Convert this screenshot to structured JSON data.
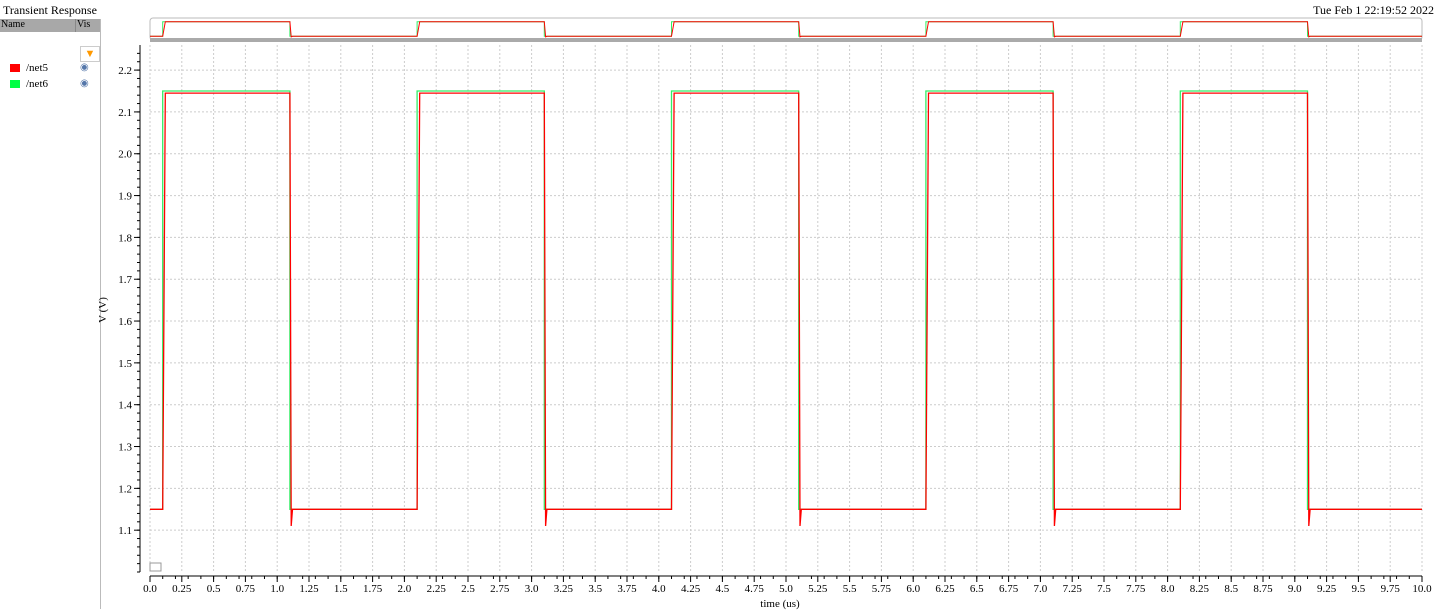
{
  "window": {
    "title": "Transient Response",
    "timestamp": "Tue Feb 1 22:19:52 2022"
  },
  "panel": {
    "col_name": "Name",
    "col_vis": "Vis",
    "filter_icon": "funnel-icon",
    "signals": [
      {
        "label": "/net5",
        "color": "#ff0000",
        "visible_icon": "eye-icon"
      },
      {
        "label": "/net6",
        "color": "#00ff44",
        "visible_icon": "eye-icon"
      }
    ]
  },
  "chart_data": {
    "type": "line",
    "title": "",
    "xlabel": "time (us)",
    "ylabel": "V (V)",
    "xlim": [
      0,
      10
    ],
    "ylim": [
      1.0,
      2.26
    ],
    "grid": true,
    "xticks": [
      "0.0",
      "0.25",
      "0.5",
      "0.75",
      "1.0",
      "1.25",
      "1.5",
      "1.75",
      "2.0",
      "2.25",
      "2.5",
      "2.75",
      "3.0",
      "3.25",
      "3.5",
      "3.75",
      "4.0",
      "4.25",
      "4.5",
      "4.75",
      "5.0",
      "5.25",
      "5.5",
      "5.75",
      "6.0",
      "6.25",
      "6.5",
      "6.75",
      "7.0",
      "7.25",
      "7.5",
      "7.75",
      "8.0",
      "8.25",
      "8.5",
      "8.75",
      "9.0",
      "9.25",
      "9.5",
      "9.75",
      "10.0"
    ],
    "yticks": [
      "1.1",
      "1.2",
      "1.3",
      "1.4",
      "1.5",
      "1.6",
      "1.7",
      "1.8",
      "1.9",
      "2.0",
      "2.1",
      "2.2"
    ],
    "series": [
      {
        "name": "/net5",
        "color": "#ff0000",
        "points": [
          [
            0,
            1.15
          ],
          [
            0.1,
            1.15
          ],
          [
            0.12,
            2.145
          ],
          [
            1.1,
            2.145
          ],
          [
            1.11,
            1.11
          ],
          [
            1.12,
            1.15
          ],
          [
            2.1,
            1.15
          ],
          [
            2.12,
            2.145
          ],
          [
            3.1,
            2.145
          ],
          [
            3.11,
            1.11
          ],
          [
            3.12,
            1.15
          ],
          [
            4.1,
            1.15
          ],
          [
            4.12,
            2.145
          ],
          [
            5.1,
            2.145
          ],
          [
            5.11,
            1.11
          ],
          [
            5.12,
            1.15
          ],
          [
            6.1,
            1.15
          ],
          [
            6.12,
            2.145
          ],
          [
            7.1,
            2.145
          ],
          [
            7.11,
            1.11
          ],
          [
            7.12,
            1.15
          ],
          [
            8.1,
            1.15
          ],
          [
            8.12,
            2.145
          ],
          [
            9.1,
            2.145
          ],
          [
            9.11,
            1.11
          ],
          [
            9.12,
            1.15
          ],
          [
            10,
            1.15
          ]
        ]
      },
      {
        "name": "/net6",
        "color": "#33ee66",
        "points": [
          [
            0,
            1.15
          ],
          [
            0.1,
            1.15
          ],
          [
            0.1,
            2.15
          ],
          [
            1.1,
            2.15
          ],
          [
            1.1,
            1.15
          ],
          [
            2.1,
            1.15
          ],
          [
            2.1,
            2.15
          ],
          [
            3.1,
            2.15
          ],
          [
            3.1,
            1.15
          ],
          [
            4.1,
            1.15
          ],
          [
            4.1,
            2.15
          ],
          [
            5.1,
            2.15
          ],
          [
            5.1,
            1.15
          ],
          [
            6.1,
            1.15
          ],
          [
            6.1,
            2.15
          ],
          [
            7.1,
            2.15
          ],
          [
            7.1,
            1.15
          ],
          [
            8.1,
            1.15
          ],
          [
            8.1,
            2.15
          ],
          [
            9.1,
            2.15
          ],
          [
            9.1,
            1.15
          ],
          [
            10,
            1.15
          ]
        ]
      }
    ]
  }
}
